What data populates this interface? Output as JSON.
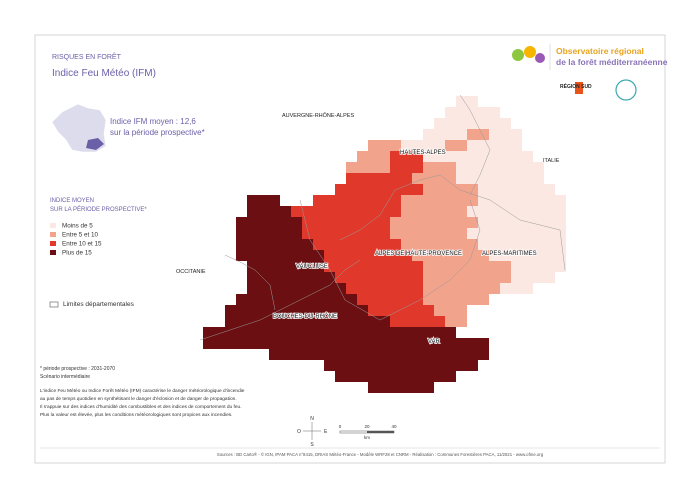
{
  "header": {
    "category": "RISQUES EN FORÊT",
    "title": "Indice Feu Météo (IFM)"
  },
  "logo": {
    "line1": "Observatoire régional",
    "line2": "de la forêt méditerranéenne",
    "region": "RÉGION SUD"
  },
  "summary": {
    "line1": "Indice IFM moyen : 12,6",
    "line2": "sur la période prospective*"
  },
  "map_labels": {
    "auvergne": "AUVERGNE-RHÔNE-ALPES",
    "hautes_alpes": "HAUTES-ALPES",
    "italie": "ITALIE",
    "ahp": "ALPES DE HAUTE-PROVENCE",
    "alpes_maritimes": "ALPES-MARITIMES",
    "vaucluse": "VAUCLUSE",
    "occitanie": "OCCITANIE",
    "bdr": "BOUCHES-DU-RHÔNE",
    "var": "VAR"
  },
  "legend": {
    "title1": "INDICE MOYEN",
    "title2": "SUR LA PÉRIODE PROSPECTIVE*",
    "items": [
      {
        "label": "Moins de 5",
        "color": "#fbe8e2"
      },
      {
        "label": "Entre 5 et 10",
        "color": "#f2a38c"
      },
      {
        "label": "Entre 10 et 15",
        "color": "#e0392b"
      },
      {
        "label": "Plus de 15",
        "color": "#6b0f12"
      }
    ],
    "limits": "Limites départementales"
  },
  "notes": {
    "period": "* période prospective : 2031-2070",
    "scenario": "Scénario intermédiaire"
  },
  "description": [
    "L'indice Feu Météo ou Indice Forêt Météo (IFM) caractérise le danger météorologique d'incendie",
    "au pas de temps quotidien en synthétisant le danger d'éclosion et de danger de propagation.",
    "Il s'appuie sur des indices d'humidité des combustibles et des indices de comportement du feu.",
    "Plus la valeur est élevée, plus les conditions météorologiques sont propices aux incendies."
  ],
  "compass": {
    "n": "N",
    "e": "E",
    "s": "S",
    "o": "O"
  },
  "scale": {
    "zero": "0",
    "mid": "20",
    "end": "40",
    "unit": "km"
  },
  "source": "Sources : BD Carto® - © IGN, IPAM PACA n°8415, DRIAS Météo-France - Modèle WRF28 et CNRM - Réalisation : Communes Forestières PACA, 11/2021 - www.ofme.org"
}
